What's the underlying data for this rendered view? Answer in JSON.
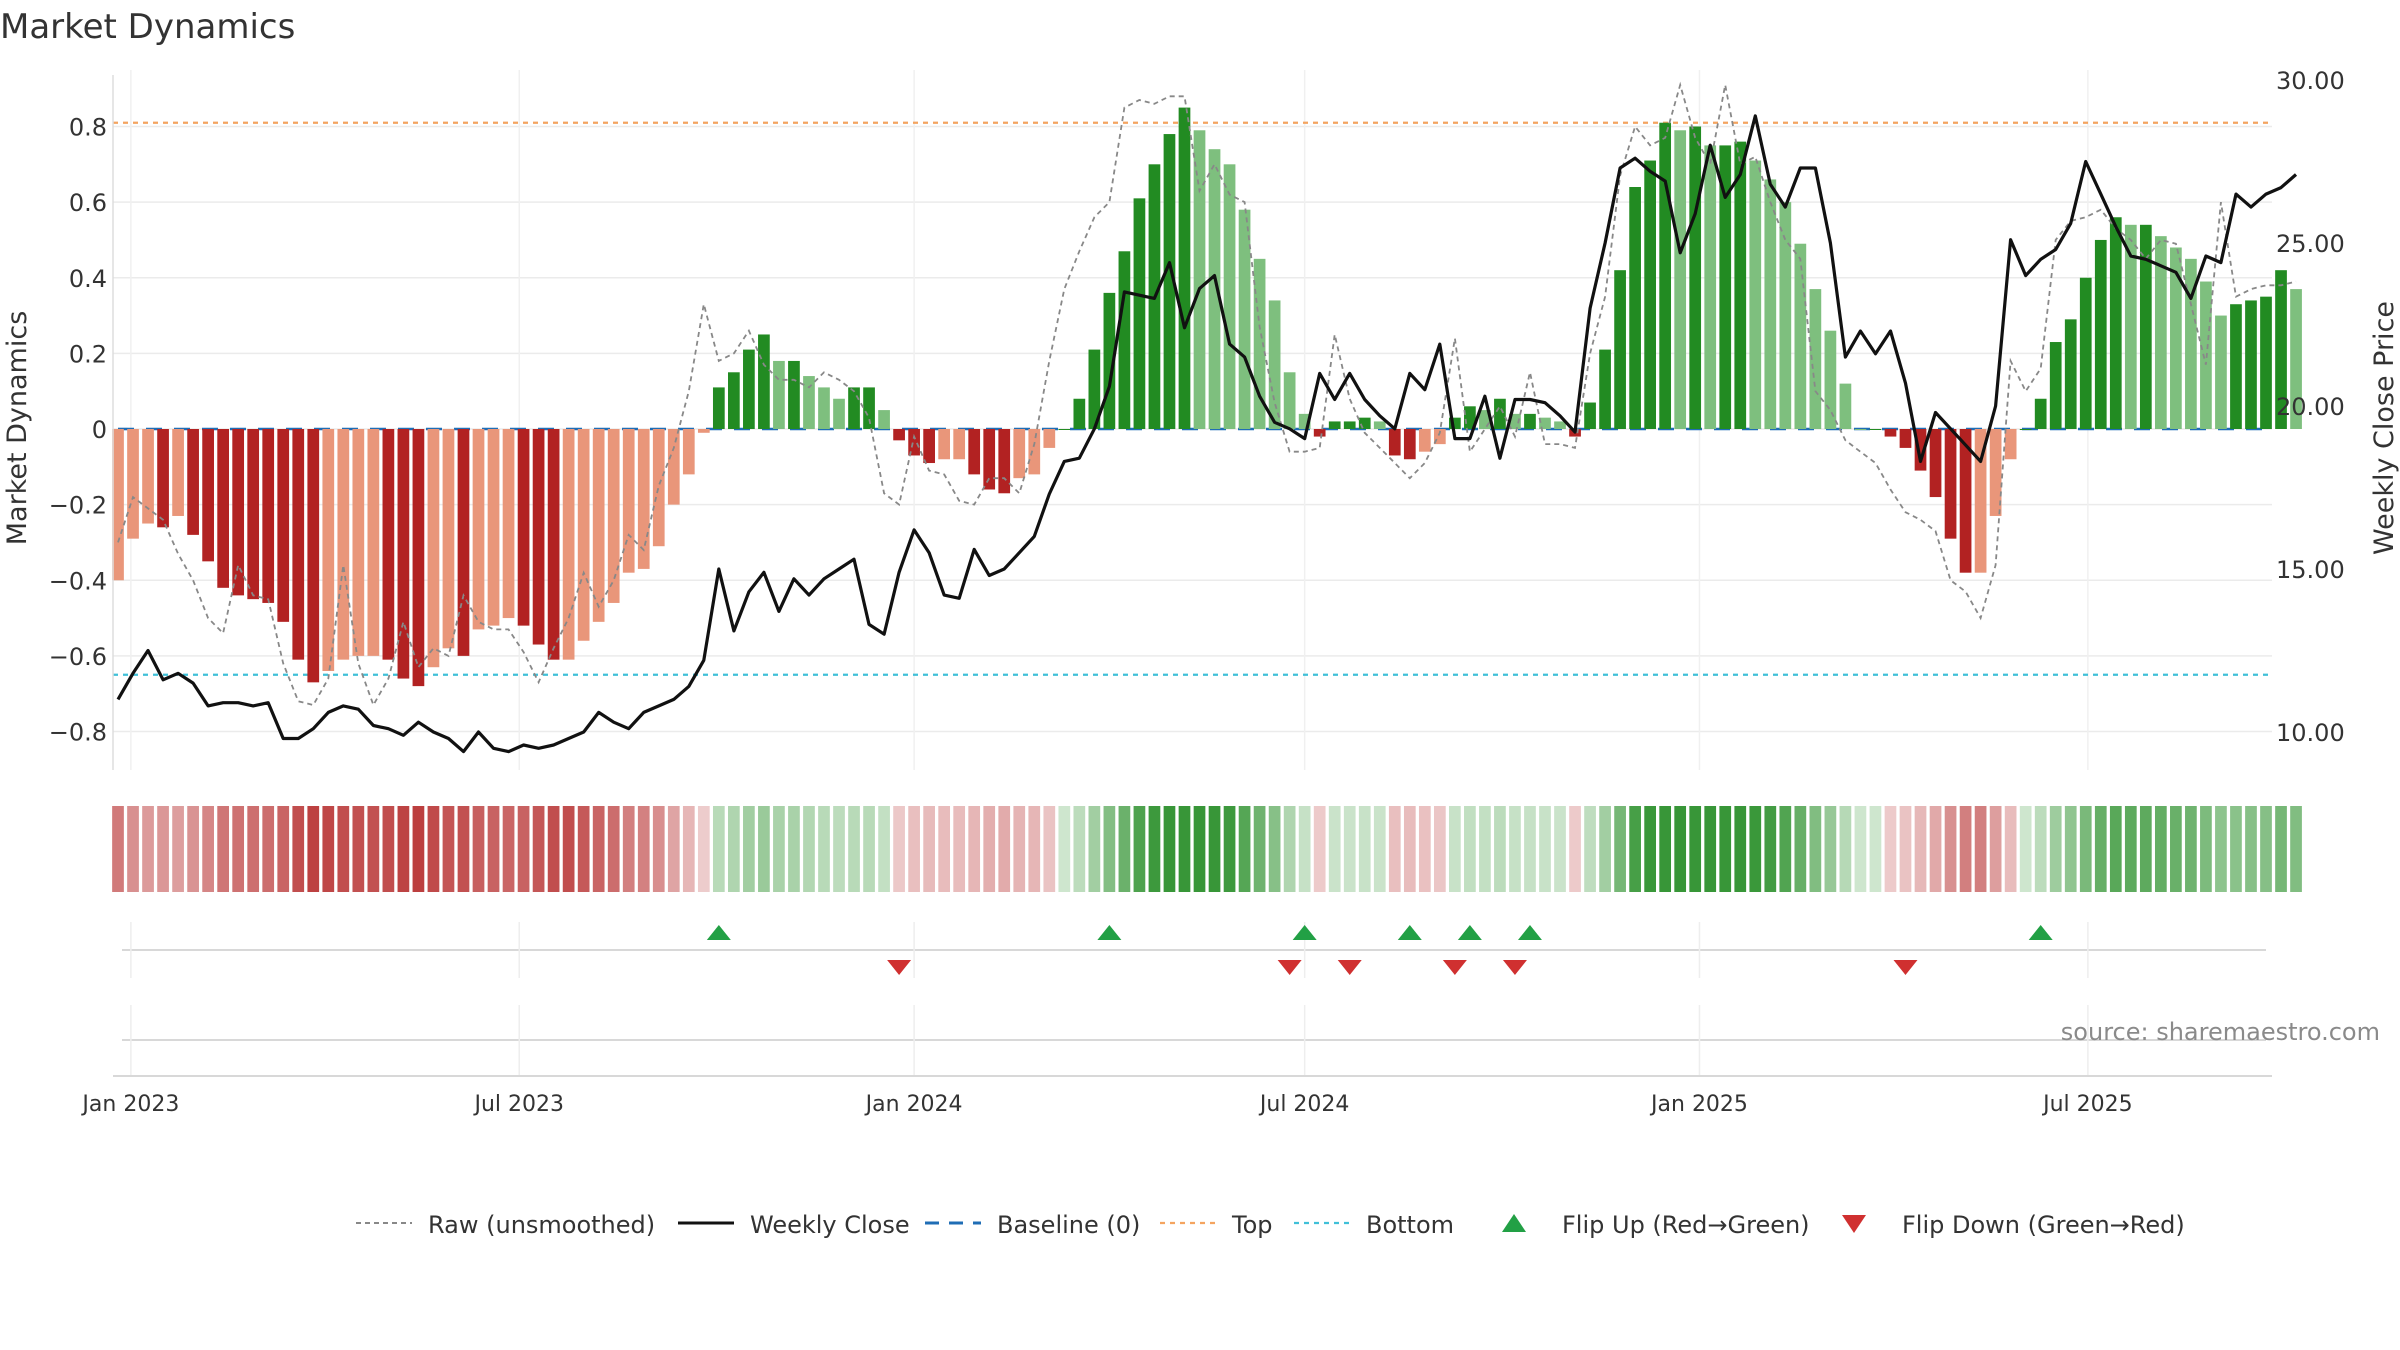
{
  "title": "Market Dynamics",
  "source": "source: sharemaestro.com",
  "colors": {
    "strong_green": "#228b22",
    "light_green": "#7ebf7e",
    "strong_red": "#b22222",
    "light_red": "#e9967a",
    "top_line": "#f4a460",
    "bottom_line": "#40c0d8",
    "baseline": "#1f6db5",
    "raw": "#888888",
    "close": "#111111",
    "flip_up": "#22a045",
    "flip_down": "#d03030"
  },
  "legend": [
    {
      "label": "Raw (unsmoothed)",
      "icon": "dashed-grey-line"
    },
    {
      "label": "Weekly Close",
      "icon": "solid-black-line"
    },
    {
      "label": "Baseline (0)",
      "icon": "dashed-blue-line"
    },
    {
      "label": "Top",
      "icon": "dotted-orange-line"
    },
    {
      "label": "Bottom",
      "icon": "dotted-cyan-line"
    },
    {
      "label": "Flip Up (Red→Green)",
      "icon": "green-up-triangle"
    },
    {
      "label": "Flip Down (Green→Red)",
      "icon": "red-down-triangle"
    }
  ],
  "chart_data": {
    "type": "bar",
    "ylabel_left": "Market Dynamics",
    "ylabel_right": "Weekly Close Price",
    "ylim_left": [
      -0.92,
      0.92
    ],
    "ylim_right": [
      8.91,
      30.58
    ],
    "yticks_left": [
      {
        "v": 0.8,
        "label": "0.8"
      },
      {
        "v": 0.6,
        "label": "0.6"
      },
      {
        "v": 0.4,
        "label": "0.4"
      },
      {
        "v": 0.2,
        "label": "0.2"
      },
      {
        "v": 0,
        "label": "0"
      },
      {
        "v": -0.2,
        "label": "−0.2"
      },
      {
        "v": -0.4,
        "label": "−0.4"
      },
      {
        "v": -0.6,
        "label": "−0.6"
      },
      {
        "v": -0.8,
        "label": "−0.8"
      }
    ],
    "yticks_right": [
      {
        "v": 30,
        "label": "30.00"
      },
      {
        "v": 25,
        "label": "25.00"
      },
      {
        "v": 20,
        "label": "20.00"
      },
      {
        "v": 15,
        "label": "15.00"
      },
      {
        "v": 10,
        "label": "10.00"
      }
    ],
    "xticks": [
      {
        "date": "2023-01-01",
        "label": "Jan 2023"
      },
      {
        "date": "2023-07-01",
        "label": "Jul 2023"
      },
      {
        "date": "2024-01-01",
        "label": "Jan 2024"
      },
      {
        "date": "2024-07-01",
        "label": "Jul 2024"
      },
      {
        "date": "2025-01-01",
        "label": "Jan 2025"
      },
      {
        "date": "2025-07-01",
        "label": "Jul 2025"
      }
    ],
    "top_threshold": 0.81,
    "bottom_threshold": -0.65,
    "baseline": 0,
    "week_dates": [
      "2022-12-26",
      "2023-01-02",
      "2023-01-09",
      "2023-01-16",
      "2023-01-23",
      "2023-01-30",
      "2023-02-06",
      "2023-02-13",
      "2023-02-20",
      "2023-02-27",
      "2023-03-06",
      "2023-03-13",
      "2023-03-20",
      "2023-03-27",
      "2023-04-03",
      "2023-04-10",
      "2023-04-17",
      "2023-04-24",
      "2023-05-01",
      "2023-05-08",
      "2023-05-15",
      "2023-05-22",
      "2023-05-29",
      "2023-06-05",
      "2023-06-12",
      "2023-06-19",
      "2023-06-26",
      "2023-07-03",
      "2023-07-10",
      "2023-07-17",
      "2023-07-24",
      "2023-07-31",
      "2023-08-07",
      "2023-08-14",
      "2023-08-21",
      "2023-08-28",
      "2023-09-04",
      "2023-09-11",
      "2023-09-18",
      "2023-09-25",
      "2023-10-02",
      "2023-10-09",
      "2023-10-16",
      "2023-10-23",
      "2023-10-30",
      "2023-11-06",
      "2023-11-13",
      "2023-11-20",
      "2023-11-27",
      "2023-12-04",
      "2023-12-11",
      "2023-12-18",
      "2023-12-25",
      "2024-01-01",
      "2024-01-08",
      "2024-01-15",
      "2024-01-22",
      "2024-01-29",
      "2024-02-05",
      "2024-02-12",
      "2024-02-19",
      "2024-02-26",
      "2024-03-04",
      "2024-03-11",
      "2024-03-18",
      "2024-03-25",
      "2024-04-01",
      "2024-04-08",
      "2024-04-15",
      "2024-04-22",
      "2024-04-29",
      "2024-05-06",
      "2024-05-13",
      "2024-05-20",
      "2024-05-27",
      "2024-06-03",
      "2024-06-10",
      "2024-06-17",
      "2024-06-24",
      "2024-07-01",
      "2024-07-08",
      "2024-07-15",
      "2024-07-22",
      "2024-07-29",
      "2024-08-05",
      "2024-08-12",
      "2024-08-19",
      "2024-08-26",
      "2024-09-02",
      "2024-09-09",
      "2024-09-16",
      "2024-09-23",
      "2024-09-30",
      "2024-10-07",
      "2024-10-14",
      "2024-10-21",
      "2024-10-28",
      "2024-11-04",
      "2024-11-11",
      "2024-11-18",
      "2024-11-25",
      "2024-12-02",
      "2024-12-09",
      "2024-12-16",
      "2024-12-23",
      "2024-12-30",
      "2025-01-06",
      "2025-01-13",
      "2025-01-20",
      "2025-01-27",
      "2025-02-03",
      "2025-02-10",
      "2025-02-17",
      "2025-02-24",
      "2025-03-03",
      "2025-03-10",
      "2025-03-17",
      "2025-03-24",
      "2025-03-31",
      "2025-04-07",
      "2025-04-14",
      "2025-04-21",
      "2025-04-28",
      "2025-05-05",
      "2025-05-12",
      "2025-05-19",
      "2025-05-26",
      "2025-06-02",
      "2025-06-09",
      "2025-06-16",
      "2025-06-23",
      "2025-06-30",
      "2025-07-07",
      "2025-07-14",
      "2025-07-21",
      "2025-07-28",
      "2025-08-04",
      "2025-08-11",
      "2025-08-18",
      "2025-08-25",
      "2025-09-01",
      "2025-09-08",
      "2025-09-15",
      "2025-09-22"
    ],
    "dynamics": [
      -0.4,
      -0.29,
      -0.25,
      -0.26,
      -0.23,
      -0.28,
      -0.35,
      -0.42,
      -0.44,
      -0.45,
      -0.46,
      -0.51,
      -0.61,
      -0.67,
      -0.64,
      -0.61,
      -0.6,
      -0.6,
      -0.61,
      -0.66,
      -0.68,
      -0.63,
      -0.58,
      -0.6,
      -0.53,
      -0.52,
      -0.5,
      -0.52,
      -0.57,
      -0.61,
      -0.61,
      -0.56,
      -0.51,
      -0.46,
      -0.38,
      -0.37,
      -0.31,
      -0.2,
      -0.12,
      -0.01,
      0.11,
      0.15,
      0.21,
      0.25,
      0.18,
      0.18,
      0.14,
      0.11,
      0.08,
      0.11,
      0.11,
      0.05,
      -0.03,
      -0.07,
      -0.09,
      -0.08,
      -0.08,
      -0.12,
      -0.16,
      -0.17,
      -0.13,
      -0.12,
      -0.05,
      0.0,
      0.08,
      0.21,
      0.36,
      0.47,
      0.61,
      0.7,
      0.78,
      0.85,
      0.79,
      0.74,
      0.7,
      0.58,
      0.45,
      0.34,
      0.15,
      0.04,
      -0.02,
      0.02,
      0.02,
      0.03,
      0.02,
      -0.07,
      -0.08,
      -0.06,
      -0.04,
      0.03,
      0.06,
      0.05,
      0.08,
      0.04,
      0.04,
      0.03,
      0.02,
      -0.02,
      0.07,
      0.21,
      0.42,
      0.64,
      0.71,
      0.81,
      0.79,
      0.8,
      0.75,
      0.75,
      0.76,
      0.71,
      0.66,
      0.6,
      0.49,
      0.37,
      0.26,
      0.12,
      0.0,
      0.0,
      -0.02,
      -0.05,
      -0.11,
      -0.18,
      -0.29,
      -0.38,
      -0.38,
      -0.23,
      -0.08,
      0.0,
      0.08,
      0.23,
      0.29,
      0.4,
      0.5,
      0.56,
      0.54,
      0.54,
      0.51,
      0.48,
      0.45,
      0.39,
      0.3,
      0.33,
      0.34,
      0.35,
      0.42,
      0.37
    ],
    "raw": [
      -0.3,
      -0.18,
      -0.21,
      -0.24,
      -0.33,
      -0.4,
      -0.5,
      -0.54,
      -0.36,
      -0.44,
      -0.45,
      -0.62,
      -0.72,
      -0.73,
      -0.66,
      -0.36,
      -0.62,
      -0.73,
      -0.66,
      -0.51,
      -0.63,
      -0.58,
      -0.6,
      -0.44,
      -0.51,
      -0.53,
      -0.53,
      -0.59,
      -0.67,
      -0.58,
      -0.5,
      -0.38,
      -0.47,
      -0.4,
      -0.28,
      -0.32,
      -0.15,
      -0.05,
      0.1,
      0.33,
      0.18,
      0.2,
      0.26,
      0.17,
      0.13,
      0.13,
      0.11,
      0.15,
      0.13,
      0.1,
      0.03,
      -0.17,
      -0.2,
      -0.02,
      -0.11,
      -0.12,
      -0.19,
      -0.2,
      -0.13,
      -0.13,
      -0.17,
      -0.04,
      0.18,
      0.37,
      0.47,
      0.56,
      0.6,
      0.85,
      0.87,
      0.86,
      0.88,
      0.88,
      0.63,
      0.7,
      0.62,
      0.6,
      0.27,
      0.07,
      -0.06,
      -0.06,
      -0.05,
      0.25,
      0.08,
      -0.01,
      -0.05,
      -0.09,
      -0.13,
      -0.09,
      -0.01,
      0.24,
      -0.06,
      0.0,
      0.06,
      -0.02,
      0.15,
      -0.04,
      -0.04,
      -0.05,
      0.2,
      0.35,
      0.67,
      0.8,
      0.75,
      0.77,
      0.91,
      0.77,
      0.7,
      0.91,
      0.7,
      0.72,
      0.6,
      0.5,
      0.45,
      0.1,
      0.05,
      -0.03,
      -0.06,
      -0.09,
      -0.16,
      -0.22,
      -0.24,
      -0.27,
      -0.4,
      -0.43,
      -0.5,
      -0.36,
      0.18,
      0.1,
      0.16,
      0.5,
      0.55,
      0.56,
      0.58,
      0.53,
      0.5,
      0.45,
      0.5,
      0.49,
      0.33,
      0.17,
      0.6,
      0.35,
      0.37,
      0.38,
      0.38,
      0.39
    ],
    "close": [
      11.0,
      11.8,
      12.5,
      11.6,
      11.8,
      11.5,
      10.8,
      10.9,
      10.9,
      10.8,
      10.9,
      9.8,
      9.8,
      10.1,
      10.6,
      10.8,
      10.7,
      10.2,
      10.1,
      9.9,
      10.3,
      10.0,
      9.8,
      9.4,
      10.0,
      9.5,
      9.4,
      9.6,
      9.5,
      9.6,
      9.8,
      10.0,
      10.6,
      10.3,
      10.1,
      10.6,
      10.8,
      11.0,
      11.4,
      12.2,
      15.0,
      13.1,
      14.3,
      14.9,
      13.7,
      14.7,
      14.2,
      14.7,
      15.0,
      15.3,
      13.3,
      13.0,
      14.9,
      16.2,
      15.5,
      14.2,
      14.1,
      15.6,
      14.8,
      15.0,
      15.5,
      16.0,
      17.3,
      18.3,
      18.4,
      19.3,
      20.6,
      23.5,
      23.4,
      23.3,
      24.4,
      22.4,
      23.6,
      24.0,
      21.9,
      21.5,
      20.3,
      19.5,
      19.3,
      19.0,
      21.0,
      20.2,
      21.0,
      20.2,
      19.7,
      19.3,
      21.0,
      20.5,
      21.9,
      19.0,
      19.0,
      20.3,
      18.4,
      20.2,
      20.2,
      20.1,
      19.7,
      19.2,
      23.0,
      25.0,
      27.3,
      27.6,
      27.2,
      26.9,
      24.7,
      25.9,
      28.0,
      26.4,
      27.1,
      28.9,
      26.8,
      26.1,
      27.3,
      27.3,
      25.0,
      21.5,
      22.3,
      21.6,
      22.3,
      20.7,
      18.3,
      19.8,
      19.3,
      18.8,
      18.3,
      20.0,
      25.1,
      24.0,
      24.5,
      24.8,
      25.6,
      27.5,
      26.5,
      25.5,
      24.6,
      24.5,
      24.3,
      24.1,
      23.3,
      24.6,
      24.4,
      26.5,
      26.1,
      26.5,
      26.7,
      27.1
    ],
    "flip_up_dates": [
      "2023-10-02",
      "2024-04-01",
      "2024-07-01",
      "2024-08-19",
      "2024-09-16",
      "2024-10-14",
      "2025-06-09"
    ],
    "flip_down_dates": [
      "2023-12-25",
      "2024-06-24",
      "2024-07-22",
      "2024-09-09",
      "2024-10-07",
      "2025-04-07"
    ]
  }
}
